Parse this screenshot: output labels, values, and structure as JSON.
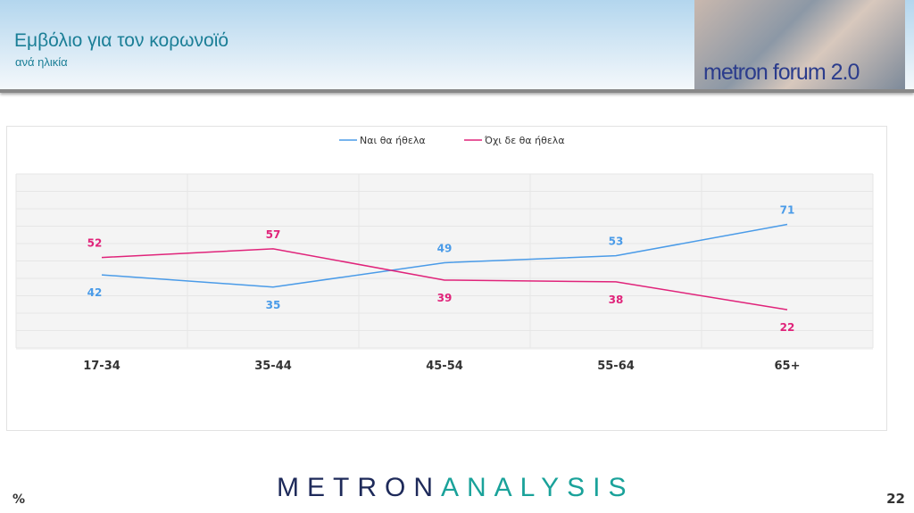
{
  "header": {
    "title": "Εμβόλιο για τον κορωνοϊό",
    "subtitle": "ανά ηλικία",
    "logo_text": "metron forum 2.0"
  },
  "footer": {
    "unit": "%",
    "brand_part1": "METRON",
    "brand_part2": "ANALYSIS",
    "page": "22"
  },
  "chart_data": {
    "type": "line",
    "categories": [
      "17-34",
      "35-44",
      "45-54",
      "55-64",
      "65+"
    ],
    "series": [
      {
        "name": "Ναι θα ήθελα",
        "values": [
          42,
          35,
          49,
          53,
          71
        ],
        "color": "#4a9be8"
      },
      {
        "name": "Όχι δε θα ήθελα",
        "values": [
          52,
          57,
          39,
          38,
          22
        ],
        "color": "#e0237a"
      }
    ],
    "ylim": [
      0,
      100
    ],
    "grid": true,
    "legend": "top-center"
  }
}
